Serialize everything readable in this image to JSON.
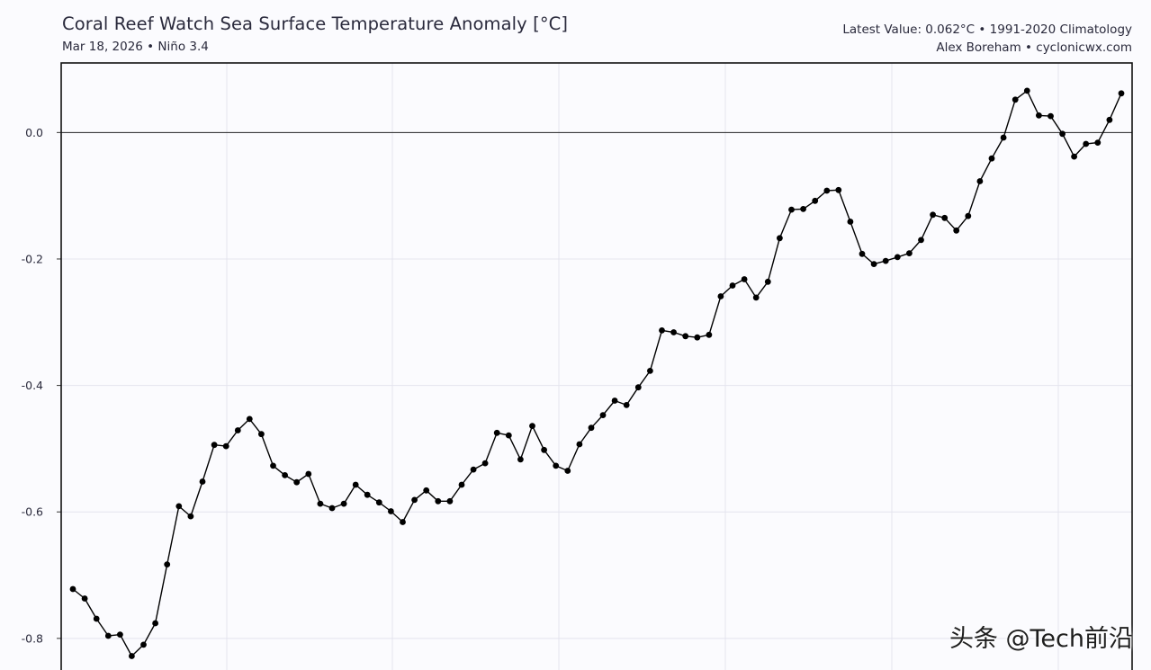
{
  "header": {
    "title": "Coral Reef Watch Sea Surface Temperature Anomaly [°C]",
    "subtitle": "Mar 18, 2026 • Niño 3.4",
    "latest": "Latest Value: 0.062°C • 1991-2020 Climatology",
    "credit": "Alex Boreham • cyclonicwx.com"
  },
  "watermark": "头条 @Tech前沿",
  "colors": {
    "background": "#fbfbfe",
    "line": "#000000",
    "grid": "#e4e4ee",
    "zero_line": "#222222"
  },
  "chart_data": {
    "type": "line",
    "title": "Coral Reef Watch Sea Surface Temperature Anomaly [°C]",
    "xlabel": "",
    "ylabel": "",
    "ylim": [
      -0.85,
      0.11
    ],
    "yticks": [
      0.0,
      -0.2,
      -0.4,
      -0.6,
      -0.8
    ],
    "ytick_labels": [
      "0.0",
      "-0.2",
      "-0.4",
      "-0.6",
      "-0.8"
    ],
    "grid": true,
    "series": [
      {
        "name": "Niño 3.4 SST anomaly",
        "values": [
          -0.722,
          -0.737,
          -0.769,
          -0.796,
          -0.794,
          -0.828,
          -0.81,
          -0.776,
          -0.683,
          -0.591,
          -0.607,
          -0.552,
          -0.494,
          -0.496,
          -0.471,
          -0.453,
          -0.477,
          -0.527,
          -0.542,
          -0.553,
          -0.54,
          -0.587,
          -0.594,
          -0.587,
          -0.557,
          -0.573,
          -0.585,
          -0.599,
          -0.616,
          -0.581,
          -0.566,
          -0.583,
          -0.583,
          -0.557,
          -0.533,
          -0.523,
          -0.475,
          -0.479,
          -0.517,
          -0.464,
          -0.502,
          -0.527,
          -0.535,
          -0.493,
          -0.467,
          -0.447,
          -0.424,
          -0.431,
          -0.403,
          -0.377,
          -0.313,
          -0.316,
          -0.322,
          -0.324,
          -0.32,
          -0.259,
          -0.242,
          -0.232,
          -0.261,
          -0.236,
          -0.167,
          -0.122,
          -0.121,
          -0.108,
          -0.092,
          -0.091,
          -0.141,
          -0.192,
          -0.208,
          -0.203,
          -0.197,
          -0.191,
          -0.17,
          -0.13,
          -0.135,
          -0.155,
          -0.132,
          -0.077,
          -0.041,
          -0.008,
          0.052,
          0.066,
          0.027,
          0.026,
          -0.002,
          -0.038,
          -0.018,
          -0.016,
          0.02,
          0.062
        ]
      }
    ]
  }
}
